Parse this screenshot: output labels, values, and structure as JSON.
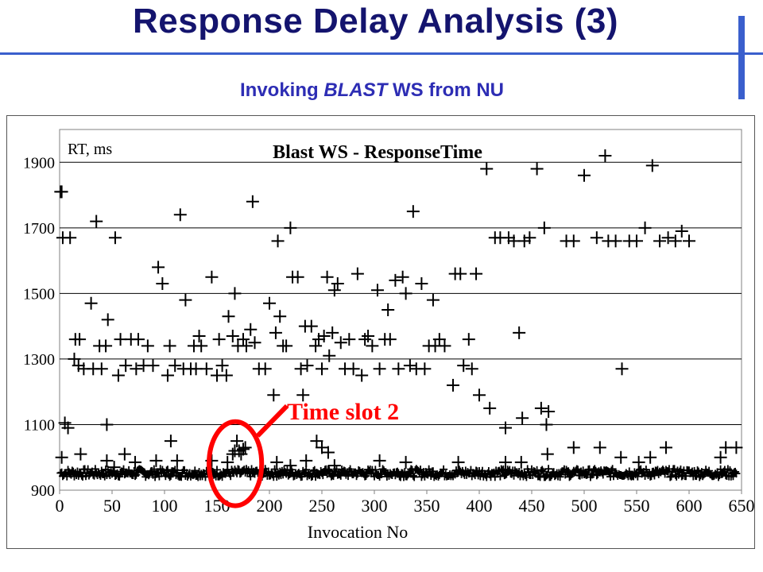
{
  "slide": {
    "title": "Response Delay Analysis (3)",
    "subtitle_prefix": "Invoking ",
    "subtitle_em": "BLAST",
    "subtitle_suffix": " WS from NU"
  },
  "colors": {
    "title": "#14146e",
    "accent_rule": "#3a5fcd",
    "subtitle": "#2d2db4",
    "annotation": "#ff0000",
    "marker": "#000000"
  },
  "chart_data": {
    "type": "scatter",
    "title": "Blast WS - ResponseTime",
    "xlabel": "Invocation No",
    "ylabel": "RT, ms",
    "xlim": [
      0,
      650
    ],
    "ylim": [
      900,
      2000
    ],
    "xticks": [
      0,
      50,
      100,
      150,
      200,
      250,
      300,
      350,
      400,
      450,
      500,
      550,
      600,
      650
    ],
    "yticks": [
      900,
      1100,
      1300,
      1500,
      1700,
      1900
    ],
    "grid": "horizontal",
    "marker": "plus",
    "annotation": {
      "text": "Time slot 2",
      "x_range": [
        150,
        185
      ],
      "y_range": [
        930,
        1080
      ]
    },
    "baseline_band": {
      "x_start": 1,
      "x_end": 645,
      "y_low": 940,
      "y_high": 965
    },
    "series": [
      {
        "values": [
          [
            1,
            1810
          ],
          [
            2,
            1810
          ],
          [
            3,
            1670
          ],
          [
            5,
            1105
          ],
          [
            8,
            1090
          ],
          [
            10,
            1670
          ],
          [
            14,
            1300
          ],
          [
            15,
            1360
          ],
          [
            18,
            1280
          ],
          [
            19,
            1360
          ],
          [
            23,
            1270
          ],
          [
            30,
            1470
          ],
          [
            32,
            1270
          ],
          [
            35,
            1720
          ],
          [
            38,
            1340
          ],
          [
            40,
            1270
          ],
          [
            44,
            1340
          ],
          [
            45,
            1100
          ],
          [
            46,
            1420
          ],
          [
            53,
            1670
          ],
          [
            56,
            1250
          ],
          [
            58,
            1360
          ],
          [
            63,
            1280
          ],
          [
            68,
            1360
          ],
          [
            73,
            1270
          ],
          [
            75,
            1360
          ],
          [
            80,
            1280
          ],
          [
            84,
            1340
          ],
          [
            89,
            1280
          ],
          [
            94,
            1580
          ],
          [
            98,
            1530
          ],
          [
            103,
            1250
          ],
          [
            105,
            1340
          ],
          [
            110,
            1280
          ],
          [
            115,
            1740
          ],
          [
            118,
            1270
          ],
          [
            120,
            1480
          ],
          [
            125,
            1270
          ],
          [
            128,
            1340
          ],
          [
            130,
            1270
          ],
          [
            133,
            1370
          ],
          [
            135,
            1340
          ],
          [
            140,
            1270
          ],
          [
            145,
            1550
          ],
          [
            150,
            1250
          ],
          [
            152,
            1360
          ],
          [
            155,
            1280
          ],
          [
            159,
            1250
          ],
          [
            161,
            1430
          ],
          [
            165,
            1370
          ],
          [
            167,
            1500
          ],
          [
            170,
            1340
          ],
          [
            175,
            1360
          ],
          [
            178,
            1340
          ],
          [
            182,
            1390
          ],
          [
            184,
            1780
          ],
          [
            186,
            1350
          ],
          [
            190,
            1270
          ],
          [
            196,
            1270
          ],
          [
            200,
            1470
          ],
          [
            204,
            1190
          ],
          [
            206,
            1380
          ],
          [
            208,
            1660
          ],
          [
            210,
            1430
          ],
          [
            213,
            1340
          ],
          [
            216,
            1340
          ],
          [
            220,
            1700
          ],
          [
            222,
            1550
          ],
          [
            227,
            1550
          ],
          [
            230,
            1270
          ],
          [
            232,
            1190
          ],
          [
            234,
            1400
          ],
          [
            236,
            1280
          ],
          [
            240,
            1400
          ],
          [
            244,
            1340
          ],
          [
            247,
            1360
          ],
          [
            250,
            1270
          ],
          [
            252,
            1370
          ],
          [
            255,
            1550
          ],
          [
            257,
            1310
          ],
          [
            260,
            1380
          ],
          [
            262,
            1510
          ],
          [
            265,
            1530
          ],
          [
            268,
            1350
          ],
          [
            272,
            1270
          ],
          [
            276,
            1360
          ],
          [
            280,
            1270
          ],
          [
            284,
            1560
          ],
          [
            288,
            1250
          ],
          [
            291,
            1360
          ],
          [
            294,
            1370
          ],
          [
            298,
            1340
          ],
          [
            303,
            1510
          ],
          [
            305,
            1270
          ],
          [
            310,
            1360
          ],
          [
            313,
            1450
          ],
          [
            315,
            1360
          ],
          [
            320,
            1540
          ],
          [
            323,
            1270
          ],
          [
            327,
            1550
          ],
          [
            330,
            1500
          ],
          [
            334,
            1280
          ],
          [
            337,
            1750
          ],
          [
            340,
            1270
          ],
          [
            345,
            1530
          ],
          [
            348,
            1270
          ],
          [
            352,
            1340
          ],
          [
            356,
            1480
          ],
          [
            358,
            1340
          ],
          [
            362,
            1360
          ],
          [
            367,
            1340
          ],
          [
            375,
            1220
          ],
          [
            377,
            1560
          ],
          [
            382,
            1560
          ],
          [
            385,
            1280
          ],
          [
            390,
            1360
          ],
          [
            393,
            1270
          ],
          [
            397,
            1560
          ],
          [
            400,
            1190
          ],
          [
            407,
            1880
          ],
          [
            410,
            1150
          ],
          [
            415,
            1670
          ],
          [
            420,
            1670
          ],
          [
            425,
            1090
          ],
          [
            428,
            1670
          ],
          [
            433,
            1660
          ],
          [
            438,
            1380
          ],
          [
            441,
            1120
          ],
          [
            443,
            1660
          ],
          [
            448,
            1670
          ],
          [
            455,
            1880
          ],
          [
            459,
            1150
          ],
          [
            462,
            1700
          ],
          [
            464,
            1100
          ],
          [
            466,
            1140
          ],
          [
            483,
            1660
          ],
          [
            490,
            1660
          ],
          [
            500,
            1860
          ],
          [
            512,
            1670
          ],
          [
            520,
            1920
          ],
          [
            523,
            1660
          ],
          [
            530,
            1660
          ],
          [
            536,
            1270
          ],
          [
            543,
            1660
          ],
          [
            550,
            1660
          ],
          [
            558,
            1700
          ],
          [
            565,
            1890
          ],
          [
            572,
            1660
          ],
          [
            580,
            1670
          ],
          [
            587,
            1660
          ],
          [
            593,
            1690
          ],
          [
            600,
            1660
          ]
        ]
      },
      {
        "values": [
          [
            2,
            1000
          ],
          [
            20,
            1010
          ],
          [
            45,
            990
          ],
          [
            52,
            970
          ],
          [
            62,
            1010
          ],
          [
            72,
            985
          ],
          [
            92,
            990
          ],
          [
            106,
            1050
          ],
          [
            112,
            990
          ],
          [
            145,
            990
          ],
          [
            160,
            985
          ],
          [
            165,
            1010
          ],
          [
            167,
            1020
          ],
          [
            169,
            1050
          ],
          [
            171,
            1020
          ],
          [
            173,
            1010
          ],
          [
            175,
            1025
          ],
          [
            177,
            1030
          ],
          [
            207,
            985
          ],
          [
            220,
            975
          ],
          [
            235,
            990
          ],
          [
            245,
            1050
          ],
          [
            250,
            1030
          ],
          [
            256,
            1015
          ],
          [
            262,
            975
          ],
          [
            305,
            990
          ],
          [
            330,
            985
          ],
          [
            380,
            985
          ],
          [
            425,
            985
          ],
          [
            440,
            985
          ],
          [
            465,
            1010
          ],
          [
            490,
            1030
          ],
          [
            515,
            1030
          ],
          [
            535,
            1000
          ],
          [
            552,
            985
          ],
          [
            563,
            1000
          ],
          [
            578,
            1030
          ],
          [
            630,
            1000
          ],
          [
            635,
            1030
          ],
          [
            645,
            1030
          ]
        ]
      }
    ]
  }
}
